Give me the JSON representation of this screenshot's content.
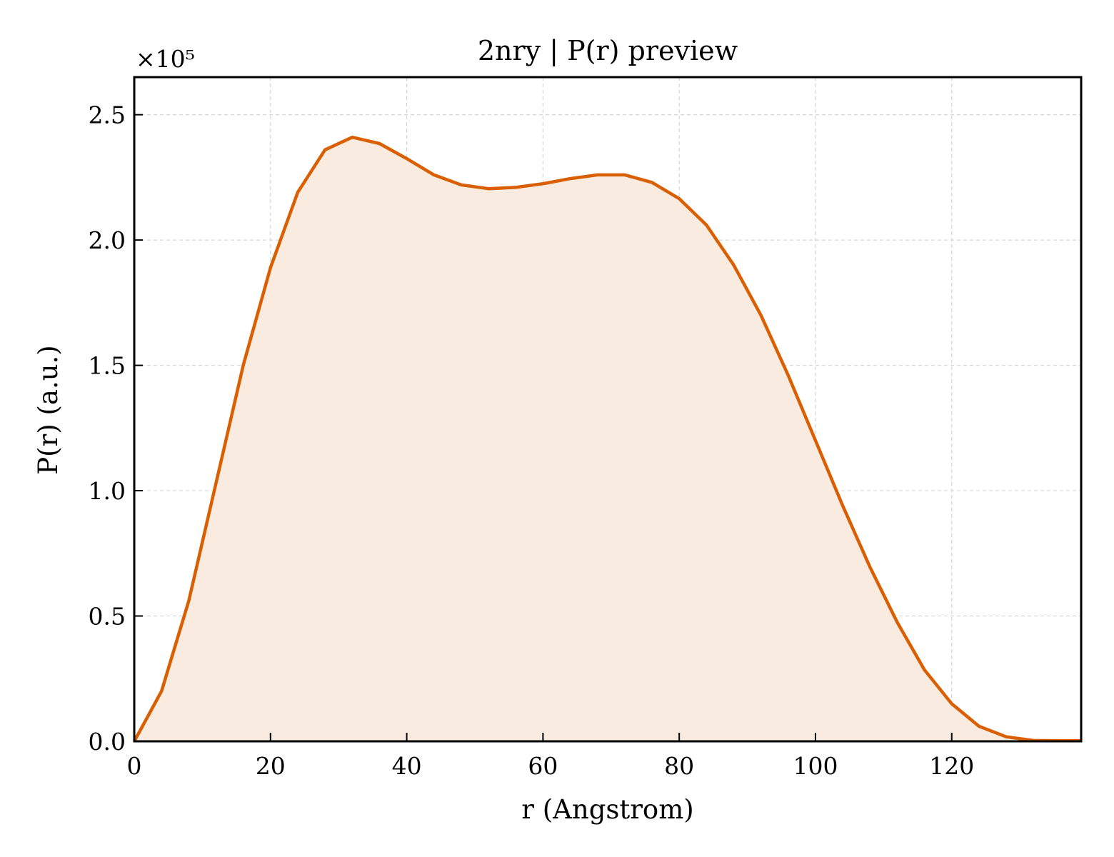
{
  "chart_data": {
    "type": "area",
    "title": "2nry | P(r) preview",
    "xlabel": "r (Angstrom)",
    "ylabel": "P(r) (a.u.)",
    "y_scale_label": "×10⁵",
    "y_scale_factor": 100000,
    "xlim": [
      0,
      139
    ],
    "ylim": [
      0,
      265000
    ],
    "x_ticks": [
      0,
      20,
      40,
      60,
      80,
      100,
      120
    ],
    "y_ticks": [
      0,
      50000,
      100000,
      150000,
      200000,
      250000
    ],
    "x_tick_labels": [
      "0",
      "20",
      "40",
      "60",
      "80",
      "100",
      "120"
    ],
    "y_tick_labels": [
      "0.0",
      "0.5",
      "1.0",
      "1.5",
      "2.0",
      "2.5"
    ],
    "grid": true,
    "line_color": "#d95f02",
    "fill_color": "#f9ebe0",
    "series": [
      {
        "x": [
          0,
          4,
          8,
          12,
          16,
          20,
          24,
          28,
          32,
          36,
          40,
          44,
          48,
          52,
          56,
          60,
          64,
          68,
          72,
          76,
          80,
          84,
          88,
          92,
          96,
          100,
          104,
          108,
          112,
          116,
          120,
          124,
          128,
          132,
          136,
          139
        ],
        "y": [
          0,
          20000,
          56000,
          103000,
          150000,
          189000,
          219000,
          236000,
          241000,
          238500,
          232500,
          226000,
          222000,
          220500,
          221000,
          222500,
          224500,
          226000,
          226000,
          223000,
          216500,
          206000,
          190000,
          170000,
          146000,
          120000,
          94000,
          69500,
          47500,
          28500,
          15000,
          6000,
          1800,
          300,
          200,
          200
        ]
      }
    ]
  }
}
